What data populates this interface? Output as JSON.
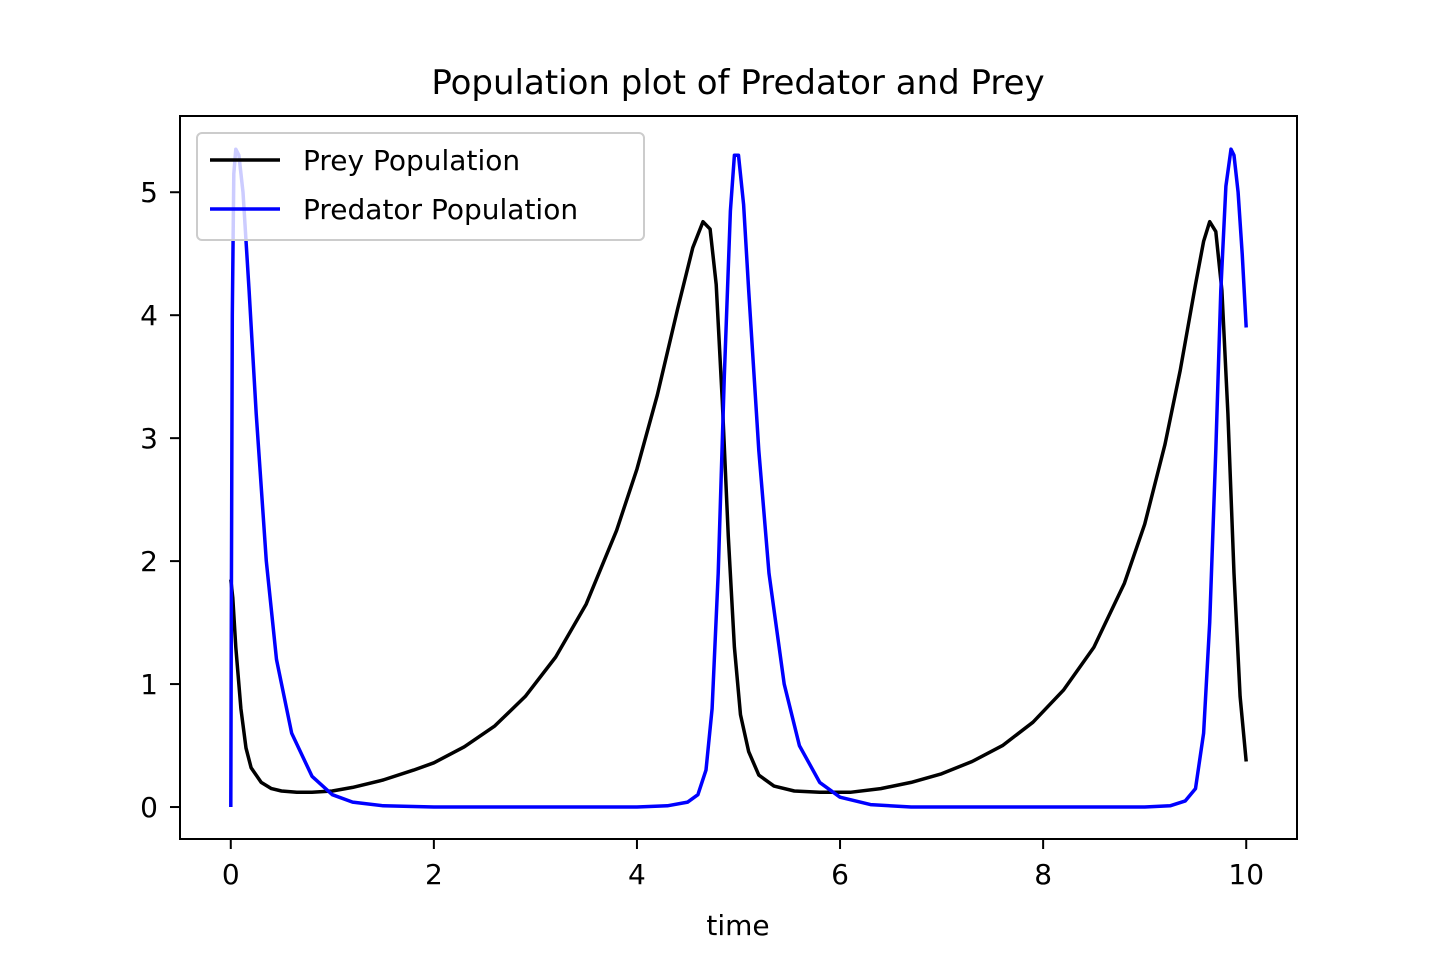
{
  "chart_data": {
    "type": "line",
    "title": "Population plot of Predator and Prey",
    "xlabel": "time",
    "ylabel": "",
    "xlim": [
      -0.5,
      10.5
    ],
    "ylim": [
      -0.26,
      5.62
    ],
    "xticks": [
      0,
      2,
      4,
      6,
      8,
      10
    ],
    "yticks": [
      0,
      1,
      2,
      3,
      4,
      5
    ],
    "legend_position": "top-left",
    "grid": false,
    "series": [
      {
        "name": "Prey Population",
        "color": "#000000",
        "x": [
          0.0,
          0.02,
          0.05,
          0.1,
          0.15,
          0.2,
          0.3,
          0.4,
          0.5,
          0.65,
          0.8,
          1.0,
          1.2,
          1.5,
          1.8,
          2.0,
          2.3,
          2.6,
          2.9,
          3.2,
          3.5,
          3.8,
          4.0,
          4.2,
          4.4,
          4.55,
          4.65,
          4.72,
          4.78,
          4.84,
          4.9,
          4.96,
          5.02,
          5.1,
          5.2,
          5.35,
          5.55,
          5.8,
          6.1,
          6.4,
          6.7,
          7.0,
          7.3,
          7.6,
          7.9,
          8.2,
          8.5,
          8.8,
          9.0,
          9.2,
          9.35,
          9.5,
          9.58,
          9.64,
          9.7,
          9.76,
          9.82,
          9.88,
          9.94,
          10.0
        ],
        "y": [
          1.85,
          1.7,
          1.3,
          0.8,
          0.48,
          0.32,
          0.2,
          0.15,
          0.13,
          0.12,
          0.12,
          0.13,
          0.16,
          0.22,
          0.3,
          0.36,
          0.49,
          0.66,
          0.9,
          1.22,
          1.65,
          2.25,
          2.75,
          3.35,
          4.05,
          4.55,
          4.76,
          4.7,
          4.25,
          3.3,
          2.2,
          1.3,
          0.75,
          0.45,
          0.26,
          0.17,
          0.13,
          0.12,
          0.12,
          0.15,
          0.2,
          0.27,
          0.37,
          0.5,
          0.69,
          0.95,
          1.3,
          1.82,
          2.3,
          2.95,
          3.55,
          4.25,
          4.6,
          4.76,
          4.68,
          4.2,
          3.2,
          1.9,
          0.9,
          0.37
        ]
      },
      {
        "name": "Predator Population",
        "color": "#0000ff",
        "x": [
          0.0,
          0.005,
          0.015,
          0.03,
          0.05,
          0.08,
          0.12,
          0.18,
          0.25,
          0.35,
          0.45,
          0.6,
          0.8,
          1.0,
          1.2,
          1.5,
          2.0,
          2.5,
          3.0,
          3.5,
          4.0,
          4.3,
          4.5,
          4.6,
          4.68,
          4.74,
          4.8,
          4.86,
          4.92,
          4.96,
          5.0,
          5.05,
          5.1,
          5.2,
          5.3,
          5.45,
          5.6,
          5.8,
          6.0,
          6.3,
          6.7,
          7.2,
          8.0,
          8.5,
          9.0,
          9.25,
          9.4,
          9.5,
          9.58,
          9.64,
          9.7,
          9.75,
          9.8,
          9.85,
          9.88,
          9.92,
          9.96,
          10.0
        ],
        "y": [
          0.0,
          1.5,
          4.0,
          5.15,
          5.35,
          5.3,
          5.0,
          4.2,
          3.2,
          2.0,
          1.2,
          0.6,
          0.25,
          0.1,
          0.04,
          0.01,
          0.0,
          0.0,
          0.0,
          0.0,
          0.0,
          0.01,
          0.04,
          0.1,
          0.3,
          0.8,
          1.9,
          3.5,
          4.85,
          5.3,
          5.3,
          4.9,
          4.2,
          2.9,
          1.9,
          1.0,
          0.5,
          0.2,
          0.08,
          0.02,
          0.0,
          0.0,
          0.0,
          0.0,
          0.0,
          0.01,
          0.05,
          0.15,
          0.6,
          1.5,
          2.9,
          4.2,
          5.05,
          5.35,
          5.3,
          5.0,
          4.5,
          3.9
        ]
      }
    ]
  }
}
